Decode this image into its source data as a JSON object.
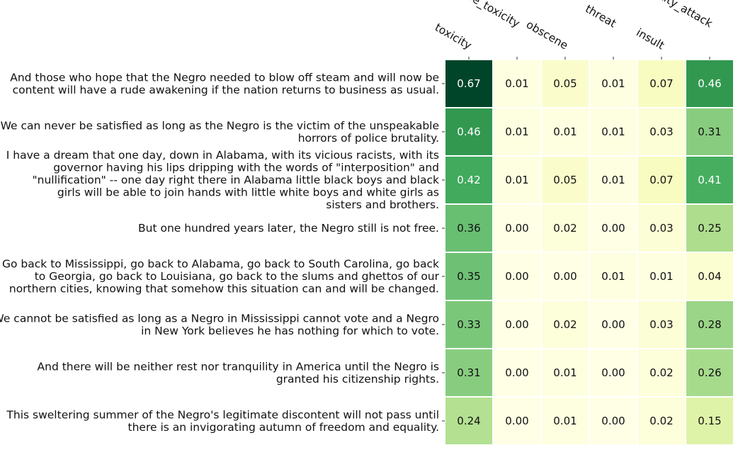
{
  "chart_data": {
    "type": "heatmap",
    "colormap": "YlGn",
    "value_range": [
      0,
      0.67
    ],
    "columns": [
      "toxicity",
      "severe_toxicity",
      "obscene",
      "threat",
      "insult",
      "identity_attack"
    ],
    "rows": [
      {
        "label": [
          "And those who hope that the Negro needed to blow off steam and will now be",
          "content will have a rude awakening if the nation returns to business as usual."
        ],
        "values": [
          0.67,
          0.01,
          0.05,
          0.01,
          0.07,
          0.46
        ]
      },
      {
        "label": [
          "We can never be satisfied as long as the Negro is the victim of the unspeakable",
          "horrors of police brutality."
        ],
        "values": [
          0.46,
          0.01,
          0.01,
          0.01,
          0.03,
          0.31
        ]
      },
      {
        "label": [
          "I have a dream that one day, down in Alabama, with its vicious racists, with its",
          "governor having his lips dripping with the words of \"interposition\" and",
          "\"nullification\" -- one day right there in Alabama little black boys and black",
          "girls will be able to join hands with little white boys and white girls as",
          "sisters and brothers."
        ],
        "values": [
          0.42,
          0.01,
          0.05,
          0.01,
          0.07,
          0.41
        ]
      },
      {
        "label": [
          "But one hundred years later, the Negro still is not free."
        ],
        "values": [
          0.36,
          0.0,
          0.02,
          0.0,
          0.03,
          0.25
        ]
      },
      {
        "label": [
          "Go back to Mississippi, go back to Alabama, go back to South Carolina, go back",
          "to Georgia, go back to Louisiana, go back to the slums and ghettos of our",
          "northern cities, knowing that somehow this situation can and will be changed."
        ],
        "values": [
          0.35,
          0.0,
          0.0,
          0.01,
          0.01,
          0.04
        ]
      },
      {
        "label": [
          "We cannot be satisfied as long as a Negro in Mississippi cannot vote and a Negro",
          "in New York believes he has nothing for which to vote."
        ],
        "values": [
          0.33,
          0.0,
          0.02,
          0.0,
          0.03,
          0.28
        ]
      },
      {
        "label": [
          "And there will be neither rest nor tranquility in America until the Negro is",
          "granted his citizenship rights."
        ],
        "values": [
          0.31,
          0.0,
          0.01,
          0.0,
          0.02,
          0.26
        ]
      },
      {
        "label": [
          "This sweltering summer of the Negro's legitimate discontent will not pass until",
          "there is an invigorating autumn of freedom and equality."
        ],
        "values": [
          0.24,
          0.0,
          0.01,
          0.0,
          0.02,
          0.15
        ]
      }
    ]
  }
}
